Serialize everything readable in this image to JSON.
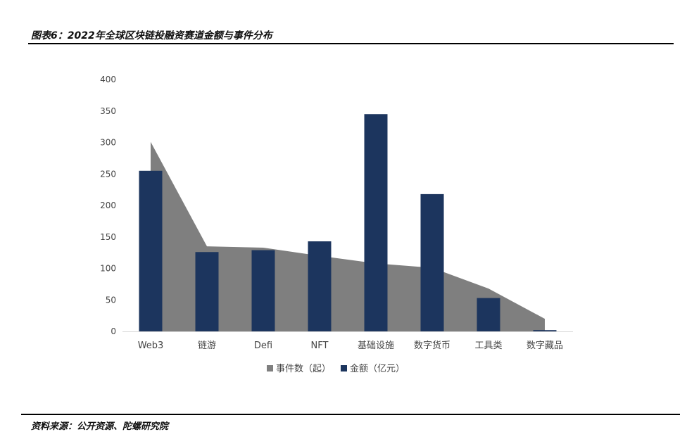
{
  "header": {
    "title": "图表6：2022年全球区块链投融资赛道金额与事件分布"
  },
  "footer": {
    "source": "资料来源：公开资源、陀螺研究院"
  },
  "colors": {
    "area": "#7f7f7f",
    "bar": "#1c355e",
    "axis": "#d9d9d9"
  },
  "chart_data": {
    "type": "bar",
    "categories": [
      "Web3",
      "链游",
      "Defi",
      "NFT",
      "基础设施",
      "数字货币",
      "工具类",
      "数字藏品"
    ],
    "series": [
      {
        "name": "事件数（起）",
        "kind": "area",
        "values": [
          301,
          135,
          133,
          120,
          108,
          101,
          68,
          20
        ]
      },
      {
        "name": "金额（亿元）",
        "kind": "bar",
        "values": [
          255,
          126,
          129,
          143,
          345,
          218,
          53,
          2
        ]
      }
    ],
    "yticks": [
      "0",
      "50",
      "100",
      "150",
      "200",
      "250",
      "300",
      "350",
      "400"
    ],
    "ylim": [
      0,
      400
    ],
    "legend": "bottom",
    "grid": false
  }
}
